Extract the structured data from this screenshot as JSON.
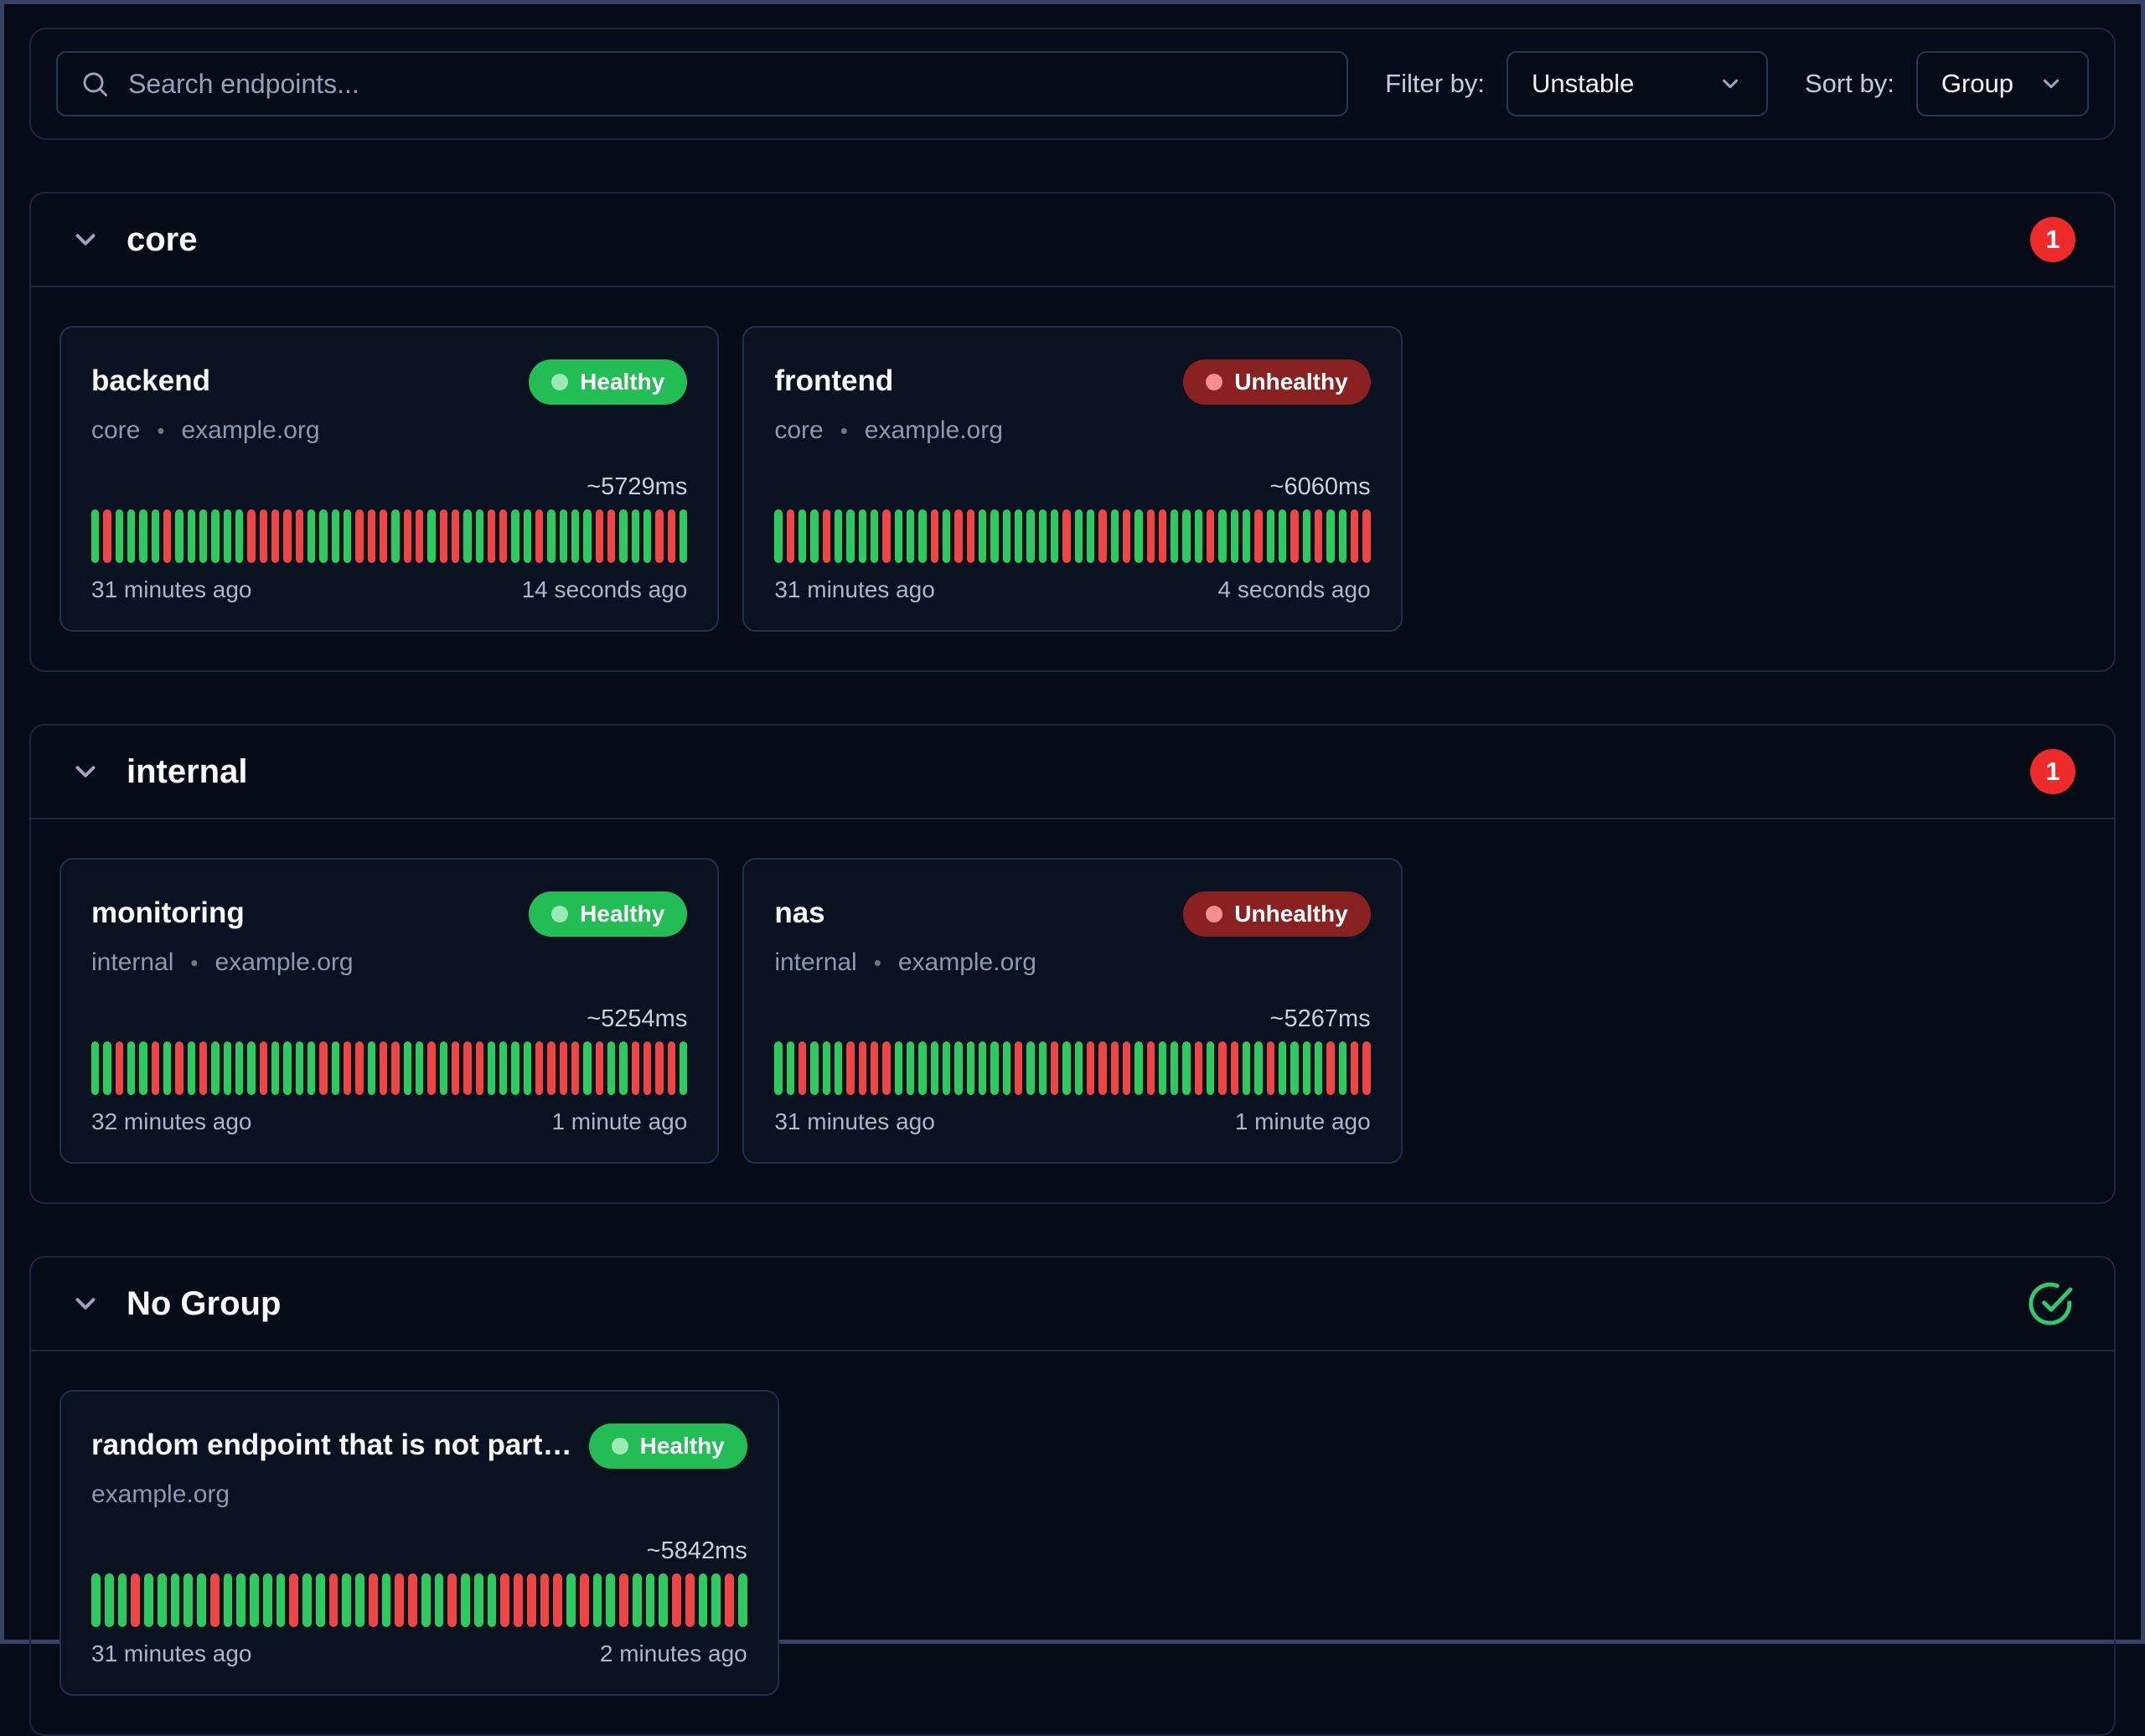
{
  "toolbar": {
    "search_placeholder": "Search endpoints...",
    "filter_label": "Filter by:",
    "filter_value": "Unstable",
    "sort_label": "Sort by:",
    "sort_value": "Group"
  },
  "meta_separator": "•",
  "colors": {
    "healthy_badge": "#23bd55",
    "unhealthy_badge": "#8a2121",
    "bar_up": "#2fca5f",
    "bar_down": "#ef4545",
    "count_badge_red": "#ef2a2a",
    "check_green": "#2ecc71"
  },
  "groups": [
    {
      "name": "core",
      "badge": {
        "type": "count",
        "value": "1"
      },
      "endpoints": [
        {
          "name": "backend",
          "status": "Healthy",
          "meta_parts": [
            "core",
            "example.org"
          ],
          "latency": "~5729ms",
          "oldest": "31 minutes ago",
          "newest": "14 seconds ago",
          "history": "GRGGGGRGGGGGGRRRRRGGGGRRRGRRGRRGGRRGGRGGGGRRGGGRRG"
        },
        {
          "name": "frontend",
          "status": "Unhealthy",
          "meta_parts": [
            "core",
            "example.org"
          ],
          "latency": "~6060ms",
          "oldest": "31 minutes ago",
          "newest": "4 seconds ago",
          "history": "GRGGRGGGGRGGGRGRRGGGGGGGRGGRGRGRRGGGRGGGRGGRGRGGRR"
        }
      ]
    },
    {
      "name": "internal",
      "badge": {
        "type": "count",
        "value": "1"
      },
      "endpoints": [
        {
          "name": "monitoring",
          "status": "Healthy",
          "meta_parts": [
            "internal",
            "example.org"
          ],
          "latency": "~5254ms",
          "oldest": "32 minutes ago",
          "newest": "1 minute ago",
          "history": "GGRGGRGRGRGGGGRGGGGRGRRGRRGGRGRRRGGGGRRRRGRGGRRRRG"
        },
        {
          "name": "nas",
          "status": "Unhealthy",
          "meta_parts": [
            "internal",
            "example.org"
          ],
          "latency": "~5267ms",
          "oldest": "31 minutes ago",
          "newest": "1 minute ago",
          "history": "GGRGGGRRRRGGGGGGGGGGRGGRGGRRRRGRGGGRGRRGGRGGGGRGRR"
        }
      ]
    },
    {
      "name": "No Group",
      "badge": {
        "type": "healthy"
      },
      "endpoints": [
        {
          "name": "random endpoint that is not part…",
          "status": "Healthy",
          "meta_parts": [
            "example.org"
          ],
          "latency": "~5842ms",
          "oldest": "31 minutes ago",
          "newest": "2 minutes ago",
          "history": "GGGRGGGGGRGGGGGRGGRGGRGRRGGRGGGRRRRRGRGGRGGGRRGGRG"
        }
      ]
    }
  ]
}
